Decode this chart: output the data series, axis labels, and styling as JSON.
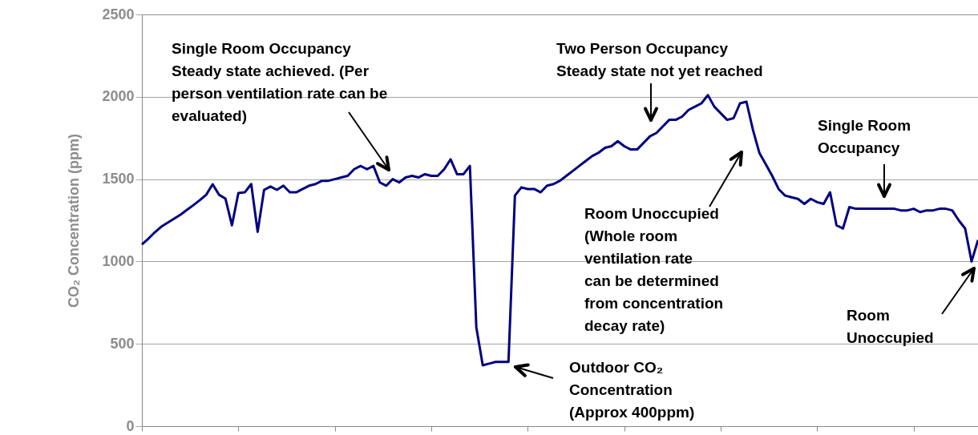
{
  "chart_data": {
    "type": "line",
    "ylabel": "CO₂ Concentration (ppm)",
    "ylim": [
      0,
      2500
    ],
    "yticks": [
      0,
      500,
      1000,
      1500,
      2000,
      2500
    ],
    "grid": "y",
    "tick_labels": "y",
    "marker": "none",
    "line_style": "solid",
    "categories": [
      null,
      null,
      null,
      null,
      null,
      null,
      null,
      null,
      null,
      null,
      null,
      null,
      null,
      null,
      null,
      null,
      null,
      null,
      null,
      null,
      null,
      null,
      null,
      null,
      null,
      null,
      null,
      null,
      null,
      null,
      null,
      null,
      null,
      null,
      null,
      null,
      null,
      null,
      null,
      null,
      null,
      null,
      null,
      null,
      null,
      null,
      null,
      null,
      null,
      null,
      null,
      null,
      null,
      null,
      null,
      null,
      null,
      null,
      null,
      null,
      null,
      null,
      null,
      null,
      null,
      null,
      null,
      null,
      null,
      null,
      null,
      null,
      null,
      null,
      null,
      null,
      null,
      null,
      null,
      null,
      null,
      null,
      null,
      null,
      null,
      null,
      null,
      null,
      null,
      null,
      null,
      null,
      null,
      null,
      null,
      null,
      null,
      null,
      null,
      null,
      null,
      null,
      null,
      null,
      null,
      null,
      null,
      null,
      null,
      null,
      null,
      null,
      null,
      null,
      null,
      null,
      null,
      null,
      null,
      null,
      null,
      null,
      null,
      null,
      null,
      null,
      null,
      null,
      null,
      null,
      null
    ],
    "series": [
      {
        "color": "#000080",
        "values": [
          1104,
          1138,
          1177,
          1211,
          1235,
          1260,
          1284,
          1313,
          1342,
          1372,
          1405,
          1469,
          1405,
          1381,
          1220,
          1415,
          1420,
          1470,
          1180,
          1435,
          1455,
          1435,
          1460,
          1420,
          1420,
          1440,
          1460,
          1470,
          1490,
          1490,
          1500,
          1510,
          1520,
          1560,
          1580,
          1560,
          1580,
          1480,
          1460,
          1500,
          1480,
          1510,
          1520,
          1510,
          1530,
          1520,
          1520,
          1560,
          1620,
          1530,
          1530,
          1580,
          600,
          370,
          380,
          390,
          390,
          390,
          1400,
          1450,
          1440,
          1440,
          1420,
          1460,
          1470,
          1490,
          1520,
          1550,
          1580,
          1610,
          1640,
          1660,
          1690,
          1700,
          1730,
          1700,
          1680,
          1680,
          1720,
          1760,
          1780,
          1820,
          1860,
          1860,
          1880,
          1920,
          1940,
          1960,
          2010,
          1940,
          1900,
          1860,
          1870,
          1960,
          1970,
          1800,
          1660,
          1590,
          1520,
          1440,
          1400,
          1390,
          1380,
          1350,
          1380,
          1360,
          1350,
          1420,
          1220,
          1200,
          1330,
          1320,
          1320,
          1320,
          1320,
          1320,
          1320,
          1320,
          1310,
          1310,
          1320,
          1300,
          1310,
          1310,
          1320,
          1320,
          1310,
          1250,
          1200,
          1000,
          1130
        ]
      }
    ],
    "annotations": [
      "Single Room Occupancy\nSteady state achieved. (Per\nperson ventilation rate can be\nevaluated)",
      "Two Person Occupancy\nSteady state not yet reached",
      "Single Room\nOccupancy",
      "Room Unoccupied\n(Whole room\nventilation rate\ncan be determined\nfrom concentration\ndecay rate)",
      "Outdoor CO₂\nConcentration\n(Approx 400ppm)",
      "Room\nUnoccupied"
    ]
  }
}
